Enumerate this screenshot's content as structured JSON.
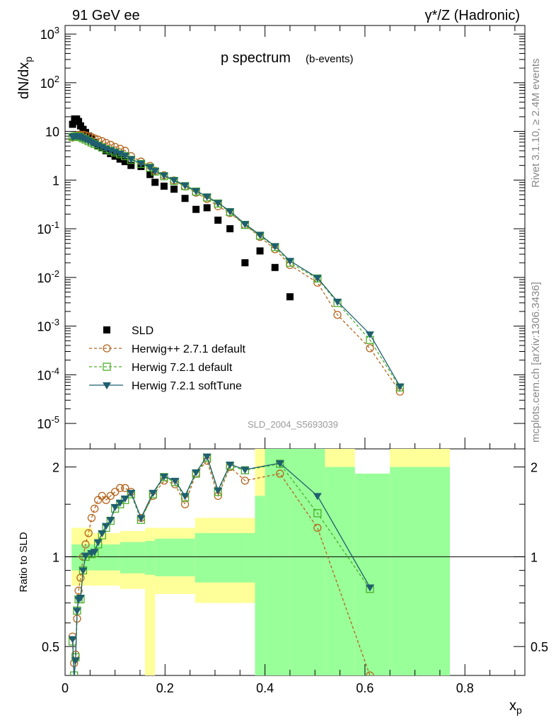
{
  "header": {
    "left": "91 GeV ee",
    "right": "γ*/Z (Hadronic)"
  },
  "side_text": {
    "rivet": "Rivet 3.1.10, ≥ 2.4M events",
    "mcplots": "mcplots.cern.ch [arXiv:1306.3436]"
  },
  "chart_data": {
    "type": "scatter",
    "title": "p spectrum",
    "subtitle": "(b-events)",
    "watermark": "SLD_2004_S5693039",
    "xlabel": "x_p",
    "ylabel": "dN/dx_p",
    "ratio_ylabel": "Ratio to SLD",
    "xlim": [
      0,
      0.92
    ],
    "ylim": [
      3e-06,
      1500
    ],
    "yscale": "log",
    "ratio_ylim": [
      0.4,
      2.3
    ],
    "ratio_yscale": "log",
    "x_ticks": [
      "0",
      "0.2",
      "0.4",
      "0.6",
      "0.8"
    ],
    "y_ticks": [
      "10^{-5}",
      "10^{-4}",
      "10^{-3}",
      "10^{-2}",
      "10^{-1}",
      "1",
      "10",
      "10^{2}",
      "10^{3}"
    ],
    "ratio_ticks": [
      "0.5",
      "1",
      "2"
    ],
    "legend_position": "bottom-left",
    "x": [
      0.015,
      0.019,
      0.023,
      0.027,
      0.031,
      0.036,
      0.041,
      0.047,
      0.053,
      0.059,
      0.066,
      0.074,
      0.082,
      0.091,
      0.1,
      0.11,
      0.12,
      0.132,
      0.152,
      0.17,
      0.18,
      0.198,
      0.218,
      0.24,
      0.262,
      0.284,
      0.306,
      0.33,
      0.36,
      0.39,
      0.42,
      0.45,
      0.505,
      0.545,
      0.61,
      0.67,
      0.72,
      0.77,
      0.84
    ],
    "series": [
      {
        "name": "SLD",
        "values": [
          14,
          18,
          18,
          16,
          13,
          11,
          9.5,
          8,
          7,
          6,
          5,
          4.6,
          4,
          3.5,
          3.1,
          2.7,
          2.4,
          2.0,
          1.9,
          1.3,
          0.9,
          0.75,
          0.65,
          0.42,
          0.25,
          0.27,
          0.15,
          0.1,
          0.02,
          0.035,
          0.016,
          0.004,
          null,
          null,
          null,
          null,
          null,
          null,
          null
        ]
      },
      {
        "name": "Herwig++ 2.7.1 default",
        "values": [
          7.5,
          7.8,
          8.2,
          8.5,
          8.6,
          8.5,
          8.3,
          8.0,
          7.6,
          7.2,
          6.8,
          6.3,
          5.8,
          5.3,
          4.8,
          4.4,
          4.0,
          3.1,
          2.4,
          1.95,
          1.55,
          1.25,
          0.98,
          0.74,
          0.55,
          0.41,
          0.29,
          0.21,
          0.12,
          0.068,
          0.038,
          0.018,
          0.0078,
          0.0017,
          0.00035,
          4.5e-05,
          null,
          null,
          null
        ]
      },
      {
        "name": "Herwig 7.2.1 default",
        "values": [
          7.7,
          7.9,
          8.0,
          7.9,
          7.6,
          7.2,
          6.8,
          6.3,
          5.9,
          5.5,
          5.1,
          4.7,
          4.3,
          4.0,
          3.7,
          3.4,
          3.1,
          2.6,
          2.15,
          1.8,
          1.5,
          1.2,
          0.96,
          0.75,
          0.58,
          0.44,
          0.33,
          0.22,
          0.12,
          0.072,
          0.042,
          0.02,
          0.0095,
          0.003,
          0.00052,
          5.5e-05,
          null,
          null,
          null
        ]
      },
      {
        "name": "Herwig 7.2.1 softTune",
        "values": [
          7.8,
          8.0,
          8.1,
          8.0,
          7.7,
          7.3,
          6.9,
          6.4,
          6.0,
          5.6,
          5.2,
          4.8,
          4.4,
          4.1,
          3.8,
          3.5,
          3.2,
          2.7,
          2.2,
          1.85,
          1.55,
          1.25,
          1.0,
          0.78,
          0.6,
          0.46,
          0.34,
          0.23,
          0.125,
          0.075,
          0.044,
          0.022,
          0.0098,
          0.0032,
          0.00068,
          5.8e-05,
          null,
          null,
          null
        ]
      }
    ],
    "ratio_series": [
      {
        "name": "Herwig++ 2.7.1 default",
        "x": [
          0.015,
          0.018,
          0.021,
          0.024,
          0.027,
          0.031,
          0.036,
          0.041,
          0.047,
          0.053,
          0.059,
          0.066,
          0.074,
          0.082,
          0.091,
          0.1,
          0.11,
          0.12,
          0.132,
          0.152,
          0.176,
          0.198,
          0.22,
          0.24,
          0.262,
          0.284,
          0.306,
          0.33,
          0.36,
          0.43,
          0.505,
          0.61
        ],
        "values": [
          0.54,
          0.44,
          0.47,
          0.62,
          0.77,
          0.85,
          1.0,
          1.1,
          1.2,
          1.35,
          1.45,
          1.55,
          1.6,
          1.55,
          1.6,
          1.65,
          1.7,
          1.7,
          1.65,
          1.35,
          1.6,
          1.8,
          1.75,
          1.5,
          1.9,
          2.1,
          1.6,
          2.0,
          1.8,
          1.9,
          1.25,
          0.4
        ]
      },
      {
        "name": "Herwig 7.2.1 default",
        "x": [
          0.015,
          0.018,
          0.021,
          0.024,
          0.027,
          0.031,
          0.036,
          0.041,
          0.053,
          0.059,
          0.066,
          0.074,
          0.082,
          0.091,
          0.1,
          0.11,
          0.12,
          0.132,
          0.152,
          0.176,
          0.198,
          0.22,
          0.24,
          0.262,
          0.284,
          0.306,
          0.33,
          0.36,
          0.43,
          0.505,
          0.61
        ],
        "values": [
          0.52,
          0.4,
          0.46,
          0.66,
          0.72,
          0.72,
          0.9,
          1.0,
          1.02,
          1.03,
          1.1,
          1.18,
          1.25,
          1.32,
          1.45,
          1.5,
          1.55,
          1.62,
          1.33,
          1.62,
          1.85,
          1.78,
          1.58,
          1.9,
          2.15,
          1.65,
          2.02,
          1.95,
          2.05,
          1.4,
          0.78
        ]
      },
      {
        "name": "Herwig 7.2.1 softTune",
        "x": [
          0.015,
          0.018,
          0.021,
          0.024,
          0.027,
          0.031,
          0.036,
          0.041,
          0.053,
          0.059,
          0.066,
          0.074,
          0.082,
          0.091,
          0.1,
          0.11,
          0.12,
          0.132,
          0.152,
          0.176,
          0.198,
          0.22,
          0.24,
          0.262,
          0.284,
          0.306,
          0.33,
          0.36,
          0.43,
          0.505,
          0.61
        ],
        "values": [
          0.53,
          0.39,
          0.45,
          0.66,
          0.72,
          0.73,
          0.9,
          1.01,
          1.03,
          1.04,
          1.12,
          1.2,
          1.27,
          1.33,
          1.47,
          1.52,
          1.57,
          1.64,
          1.35,
          1.64,
          1.86,
          1.8,
          1.6,
          1.92,
          2.17,
          1.67,
          2.04,
          1.96,
          2.06,
          1.6,
          0.79
        ]
      }
    ],
    "colors": {
      "SLD": "#000000",
      "Herwig++ 2.7.1 default": "#b5651d",
      "Herwig 7.2.1 default": "#4caf2a",
      "Herwig 7.2.1 softTune": "#1f5f6f",
      "band_inner": "#99ff99",
      "band_outer": "#ffff99"
    }
  }
}
